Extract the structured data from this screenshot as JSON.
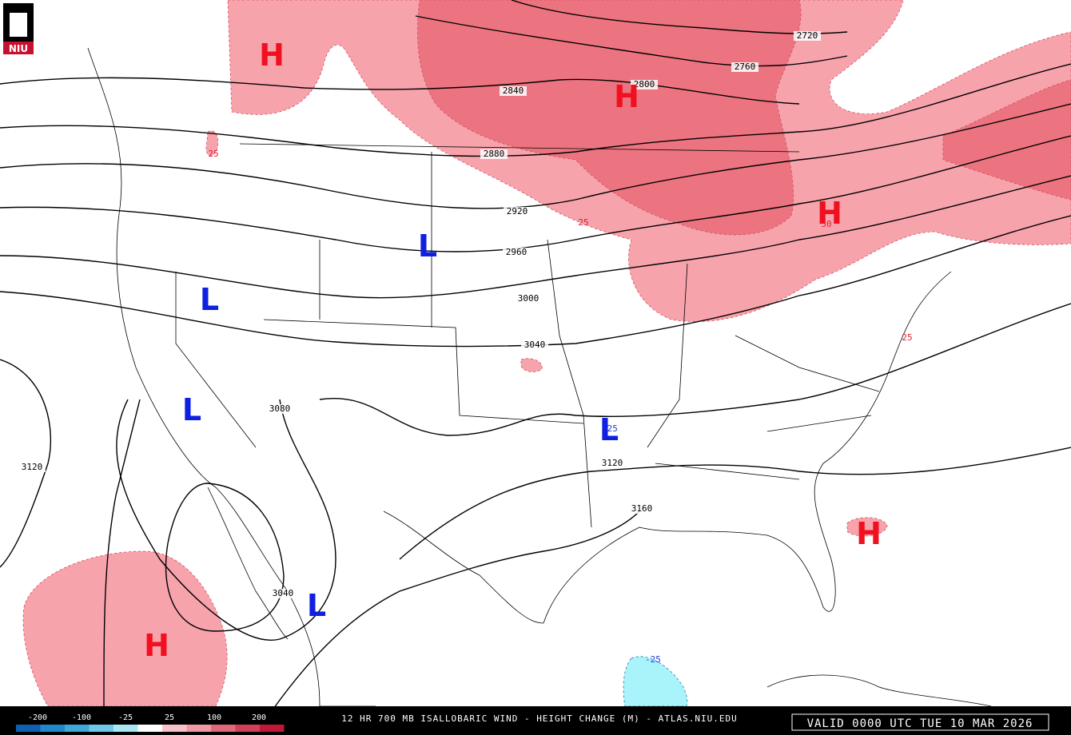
{
  "logo": "NIU",
  "contour_labels": [
    2720,
    2760,
    2800,
    2840,
    2880,
    2920,
    2960,
    3000,
    3040,
    3080,
    3120,
    3120,
    3160,
    3040
  ],
  "change_labels": [
    25,
    25,
    25,
    50,
    -25,
    -25
  ],
  "highs": [
    "H",
    "H",
    "H",
    "H",
    "H"
  ],
  "lows": [
    "L",
    "L",
    "L",
    "L",
    "L"
  ],
  "colorbar_labels": [
    -200,
    -100,
    -25,
    25,
    100,
    200
  ],
  "footer_title": "12 HR 700 MB ISALLOBARIC WIND - HEIGHT CHANGE (M) - ATLAS.NIU.EDU",
  "valid_time": "VALID 0000 UTC TUE 10 MAR 2026"
}
